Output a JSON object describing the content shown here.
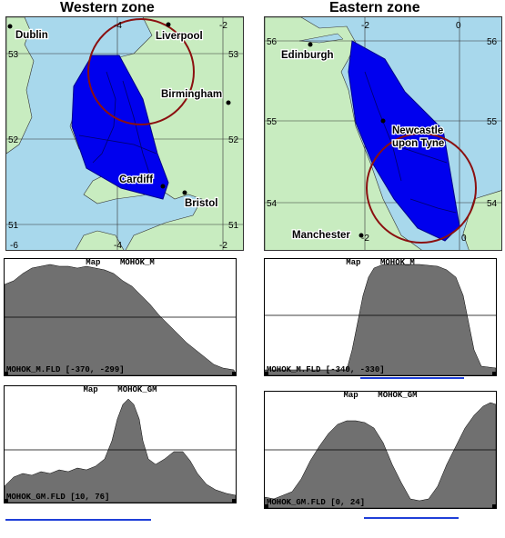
{
  "western": {
    "title": "Western zone",
    "cities": [
      "Dublin",
      "Liverpool",
      "Birmingham",
      "Cardiff",
      "Bristol"
    ],
    "lon_ticks_top": [
      "-4",
      "-2"
    ],
    "lon_ticks_bottom": [
      "-6",
      "-4",
      "-2"
    ],
    "lat_ticks": [
      "53",
      "52",
      "51"
    ],
    "panels": [
      {
        "title": "Map    MOHOK_M",
        "footer": "MOHOK_M.FLD [-370, -299]"
      },
      {
        "title": "Map    MOHOK_GM",
        "footer": "MOHOK_GM.FLD [10, 76]"
      }
    ]
  },
  "eastern": {
    "title": "Eastern zone",
    "cities": [
      "Edinburgh",
      "Newcastle",
      "upon Tyne",
      "Manchester"
    ],
    "lon_ticks_top": [
      "-2",
      "0"
    ],
    "lon_ticks_bottom": [
      "-2",
      "0"
    ],
    "lat_ticks": [
      "56",
      "55",
      "54"
    ],
    "panels": [
      {
        "title": "Map    MOHOK_M",
        "footer": "MOHOK_M.FLD [-340, -330]"
      },
      {
        "title": "Map    MOHOK_GM",
        "footer": "MOHOK_GM.FLD [0, 24]"
      }
    ]
  },
  "colors": {
    "sea": "#a8d8ec",
    "land": "#c8ecc0",
    "zone": "#0000ee",
    "circle": "#8b1010",
    "profile": "#707070",
    "accent": "#1f3fd8"
  }
}
